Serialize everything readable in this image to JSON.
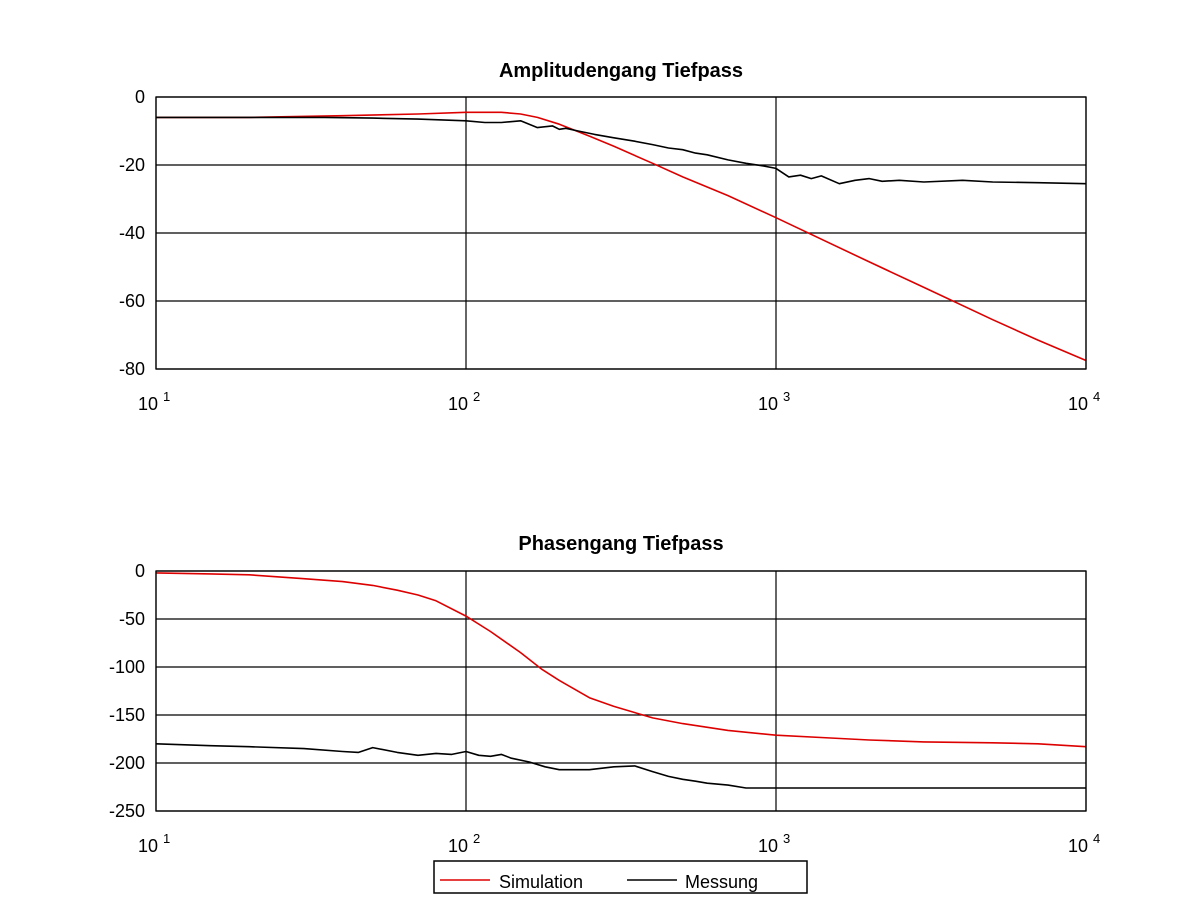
{
  "legend": [
    {
      "name": "Simulation",
      "color": "#dd0000"
    },
    {
      "name": "Messung",
      "color": "#000000"
    }
  ],
  "chart_data": [
    {
      "type": "line",
      "title": "Amplitudengang Tiefpass",
      "xlabel": "",
      "ylabel": "",
      "xscale": "log",
      "xlim": [
        10,
        10000
      ],
      "ylim": [
        -80,
        0
      ],
      "xticks": [
        {
          "base": "10",
          "exp": "1",
          "value": 10
        },
        {
          "base": "10",
          "exp": "2",
          "value": 100
        },
        {
          "base": "10",
          "exp": "3",
          "value": 1000
        },
        {
          "base": "10",
          "exp": "4",
          "value": 10000
        }
      ],
      "yticks": [
        "0",
        "-20",
        "-40",
        "-60",
        "-80"
      ],
      "grid": true,
      "series": [
        {
          "name": "Simulation",
          "color": "#dd0000",
          "x": [
            10,
            20,
            40,
            70,
            100,
            130,
            150,
            170,
            200,
            250,
            300,
            400,
            500,
            700,
            1000,
            2000,
            3000,
            5000,
            7000,
            10000
          ],
          "y": [
            -6,
            -6,
            -5.5,
            -5,
            -4.5,
            -4.5,
            -5,
            -6,
            -8,
            -11.5,
            -14.5,
            -19.5,
            -23.5,
            -29,
            -35.5,
            -48.5,
            -56,
            -65.5,
            -71.5,
            -77.5
          ]
        },
        {
          "name": "Messung",
          "color": "#000000",
          "x": [
            10,
            20,
            35,
            50,
            70,
            100,
            115,
            130,
            150,
            170,
            190,
            200,
            210,
            230,
            260,
            300,
            350,
            400,
            450,
            500,
            550,
            600,
            700,
            800,
            900,
            1000,
            1100,
            1200,
            1300,
            1400,
            1600,
            1800,
            2000,
            2200,
            2500,
            3000,
            4000,
            5000,
            7000,
            10000
          ],
          "y": [
            -6,
            -6,
            -6,
            -6.2,
            -6.5,
            -7,
            -7.5,
            -7.5,
            -7,
            -9,
            -8.5,
            -9.5,
            -9.2,
            -10,
            -11,
            -12,
            -13,
            -14,
            -15,
            -15.5,
            -16.5,
            -17,
            -18.5,
            -19.5,
            -20.2,
            -21,
            -23.5,
            -23,
            -24,
            -23.2,
            -25.5,
            -24.5,
            -24,
            -24.8,
            -24.5,
            -25,
            -24.5,
            -25,
            -25.2,
            -25.5
          ]
        }
      ]
    },
    {
      "type": "line",
      "title": "Phasengang Tiefpass",
      "xlabel": "",
      "ylabel": "",
      "xscale": "log",
      "xlim": [
        10,
        10000
      ],
      "ylim": [
        -250,
        0
      ],
      "xticks": [
        {
          "base": "10",
          "exp": "1",
          "value": 10
        },
        {
          "base": "10",
          "exp": "2",
          "value": 100
        },
        {
          "base": "10",
          "exp": "3",
          "value": 1000
        },
        {
          "base": "10",
          "exp": "4",
          "value": 10000
        }
      ],
      "yticks": [
        "0",
        "-50",
        "-100",
        "-150",
        "-200",
        "-250"
      ],
      "grid": true,
      "series": [
        {
          "name": "Simulation",
          "color": "#dd0000",
          "x": [
            10,
            15,
            20,
            30,
            40,
            50,
            60,
            70,
            80,
            100,
            120,
            150,
            175,
            200,
            250,
            300,
            400,
            500,
            700,
            1000,
            1500,
            2000,
            3000,
            5000,
            7000,
            10000
          ],
          "y": [
            -2,
            -3,
            -4,
            -8,
            -11,
            -15,
            -20,
            -25,
            -31,
            -47,
            -63,
            -85,
            -102,
            -114,
            -132,
            -141,
            -153,
            -159,
            -166,
            -171,
            -174,
            -176,
            -178,
            -179,
            -180,
            -183
          ]
        },
        {
          "name": "Messung",
          "color": "#000000",
          "x": [
            10,
            15,
            20,
            30,
            40,
            45,
            50,
            60,
            70,
            80,
            90,
            100,
            110,
            120,
            130,
            140,
            160,
            180,
            200,
            250,
            300,
            350,
            400,
            450,
            500,
            550,
            600,
            700,
            800,
            1000,
            2000,
            5000,
            10000
          ],
          "y": [
            -180,
            -182,
            -183,
            -185,
            -188,
            -189,
            -184,
            -189,
            -192,
            -190,
            -191,
            -188,
            -192,
            -193,
            -191,
            -195,
            -199,
            -204,
            -207,
            -207,
            -204,
            -203,
            -209,
            -214,
            -217,
            -219,
            -221,
            -223,
            -226,
            -226,
            -226,
            -226,
            -226
          ]
        }
      ]
    }
  ]
}
